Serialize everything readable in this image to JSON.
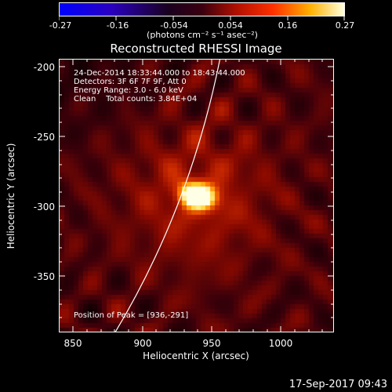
{
  "colorbar": {
    "ticks": [
      "-0.27",
      "-0.16",
      "-0.054",
      "0.054",
      "0.16",
      "0.27"
    ],
    "units": "(photons cm⁻² s⁻¹ asec⁻²)"
  },
  "title": "Reconstructed RHESSI Image",
  "annotations": {
    "line1": "24-Dec-2014 18:33:44.000 to 18:43:44.000",
    "line2": "Detectors: 3F 6F 7F 9F, Att 0",
    "line3": "Energy Range: 3.0 - 6.0 keV",
    "line4": "Clean    Total counts: 3.84E+04",
    "peak": "Position of Peak = [936,-291]"
  },
  "xaxis": {
    "label": "Heliocentric X (arcsec)",
    "ticks": [
      "850",
      "900",
      "950",
      "1000"
    ]
  },
  "yaxis": {
    "label": "Heliocentric Y (arcsec)",
    "ticks": [
      "-200",
      "-250",
      "-300",
      "-350"
    ]
  },
  "datestamp": "17-Sep-2017 09:43",
  "colors": {
    "background": "#000000",
    "limb": "#ffffff"
  }
}
